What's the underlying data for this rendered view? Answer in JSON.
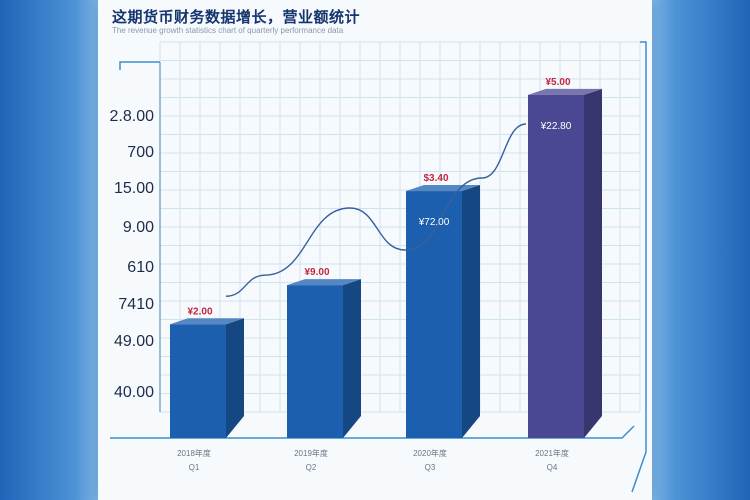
{
  "page": {
    "title": "这期货币财务数据增长，营业额统计",
    "subtitle": "The revenue growth statistics chart of quarterly performance data"
  },
  "colors": {
    "bar_blue": "#1c5fae",
    "bar_purple": "#4a4893",
    "grid": "#cfe2f0",
    "frame": "#3b8fd0",
    "trend": "#3a5f9e"
  },
  "chart_data": {
    "type": "bar",
    "title": "这期货币财务数据增长，营业额统计",
    "xlabel": "",
    "ylabel": "",
    "y_tick_labels": [
      "40.00",
      "49.00",
      "7410",
      "610",
      "9.00",
      "15.00",
      "700",
      "2.8.00"
    ],
    "categories": [
      "Q1",
      "Q2",
      "Q3",
      "Q4"
    ],
    "category_labels": [
      "2018年度",
      "2019年度",
      "2020年度",
      "2021年度"
    ],
    "values": [
      42.6,
      50.0,
      67.8,
      86.0
    ],
    "ylim": [
      26,
      96
    ],
    "top_labels": [
      "¥2.00",
      "¥9.00",
      "$3.40",
      "¥5.00"
    ],
    "inner_labels": [
      "",
      "",
      "¥72.00",
      "¥22.80"
    ],
    "bar_colors": [
      "#1c5fae",
      "#1c5fae",
      "#1c5fae",
      "#4a4893"
    ],
    "trend_line": true,
    "grid": true
  }
}
